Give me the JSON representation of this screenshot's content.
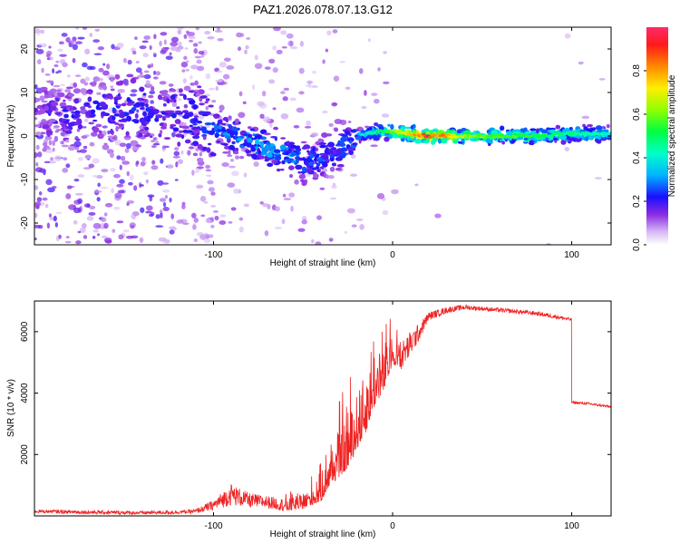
{
  "chart_data": [
    {
      "type": "heatmap",
      "title": "PAZ1.2026.078.07.13.G12",
      "xlabel": "Height of straight line (km)",
      "ylabel": "Frequency (Hz)",
      "xlim": [
        -200,
        122
      ],
      "ylim": [
        -25,
        25
      ],
      "xticks": [
        -100,
        0,
        100
      ],
      "yticks": [
        -20,
        -10,
        0,
        10,
        20
      ],
      "colorbar": {
        "label": "Normalized spectral amplitude",
        "range": [
          0,
          1
        ],
        "ticks": [
          0.0,
          0.2,
          0.4,
          0.6,
          0.8
        ]
      },
      "ridge": [
        {
          "x": -200,
          "freq": 5,
          "amp": 0.18
        },
        {
          "x": -180,
          "freq": 5,
          "amp": 0.22
        },
        {
          "x": -160,
          "freq": 6,
          "amp": 0.24
        },
        {
          "x": -140,
          "freq": 6,
          "amp": 0.25
        },
        {
          "x": -120,
          "freq": 5,
          "amp": 0.26
        },
        {
          "x": -100,
          "freq": 2,
          "amp": 0.3
        },
        {
          "x": -90,
          "freq": 0,
          "amp": 0.36
        },
        {
          "x": -80,
          "freq": -1,
          "amp": 0.35
        },
        {
          "x": -70,
          "freq": -3,
          "amp": 0.38
        },
        {
          "x": -60,
          "freq": -4,
          "amp": 0.35
        },
        {
          "x": -50,
          "freq": -6,
          "amp": 0.33
        },
        {
          "x": -40,
          "freq": -5,
          "amp": 0.3
        },
        {
          "x": -30,
          "freq": -3,
          "amp": 0.3
        },
        {
          "x": -20,
          "freq": 0,
          "amp": 0.35
        },
        {
          "x": -10,
          "freq": 1,
          "amp": 0.48
        },
        {
          "x": 0,
          "freq": 1,
          "amp": 0.62
        },
        {
          "x": 10,
          "freq": 0.5,
          "amp": 0.78
        },
        {
          "x": 20,
          "freq": 0,
          "amp": 0.97
        },
        {
          "x": 40,
          "freq": 0,
          "amp": 0.68
        },
        {
          "x": 60,
          "freq": 0,
          "amp": 0.6
        },
        {
          "x": 80,
          "freq": 0,
          "amp": 0.55
        },
        {
          "x": 100,
          "freq": 0.5,
          "amp": 0.5
        },
        {
          "x": 122,
          "freq": 0.5,
          "amp": 0.45
        }
      ]
    },
    {
      "type": "line",
      "xlabel": "Height of straight line (km)",
      "ylabel": "SNR (10 * v/v)",
      "xlim": [
        -200,
        122
      ],
      "ylim": [
        0,
        7000
      ],
      "xticks": [
        -100,
        0,
        100
      ],
      "yticks": [
        2000,
        4000,
        6000
      ],
      "line_color": "#ee2222",
      "series": [
        {
          "name": "SNR",
          "x": [
            -200,
            -170,
            -140,
            -120,
            -110,
            -100,
            -90,
            -80,
            -70,
            -60,
            -50,
            -40,
            -35,
            -30,
            -25,
            -20,
            -15,
            -10,
            -5,
            0,
            5,
            10,
            15,
            20,
            30,
            40,
            50,
            60,
            70,
            80,
            90,
            99,
            100,
            110,
            122
          ],
          "y": [
            150,
            120,
            100,
            120,
            150,
            350,
            700,
            500,
            450,
            350,
            500,
            900,
            1600,
            2100,
            2500,
            3200,
            3800,
            4500,
            4800,
            5500,
            5200,
            5600,
            6000,
            6500,
            6700,
            6800,
            6750,
            6700,
            6650,
            6600,
            6500,
            6400,
            3700,
            3650,
            3550
          ],
          "noise": [
            80,
            90,
            80,
            90,
            100,
            250,
            500,
            350,
            300,
            300,
            450,
            700,
            1000,
            1400,
            1600,
            1700,
            1800,
            1500,
            1200,
            900,
            700,
            600,
            400,
            200,
            150,
            120,
            100,
            100,
            100,
            100,
            100,
            80,
            60,
            60,
            60
          ]
        }
      ]
    }
  ]
}
